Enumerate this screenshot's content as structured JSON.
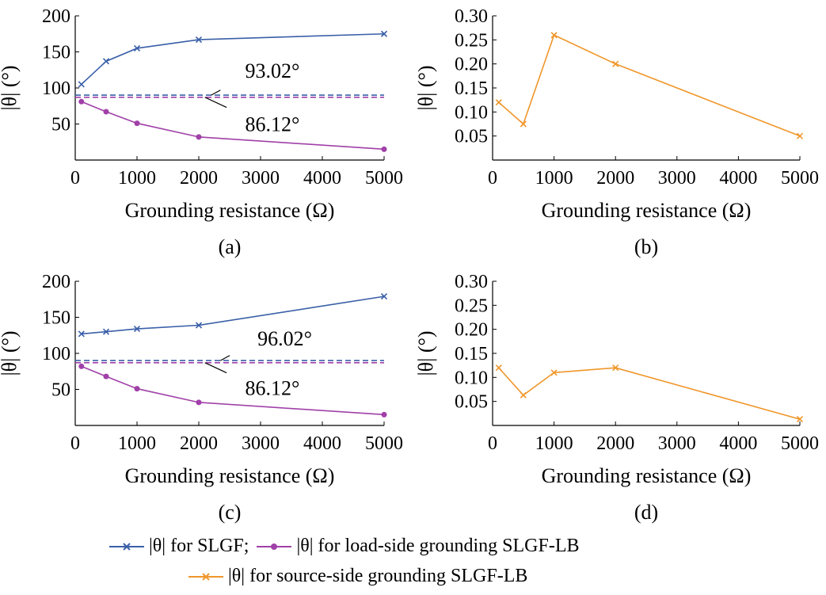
{
  "legend": {
    "items": [
      {
        "label": "|θ| for SLGF;",
        "color": "#3a5fa8",
        "marker": "x"
      },
      {
        "label": "|θ| for load-side grounding SLGF-LB",
        "color": "#a040a8",
        "marker": "dot"
      },
      {
        "label": "|θ| for source-side grounding SLGF-LB",
        "color": "#f0962a",
        "marker": "x"
      }
    ]
  },
  "chart_data": [
    {
      "panel": "(a)",
      "type": "line",
      "xlabel": "Grounding resistance (Ω)",
      "ylabel": "|θ| (°)",
      "xlim": [
        0,
        5000
      ],
      "ylim": [
        0,
        200
      ],
      "xticks": [
        0,
        1000,
        2000,
        3000,
        4000,
        5000
      ],
      "yticks": [
        50,
        100,
        150,
        200
      ],
      "series": [
        {
          "name": "|θ| for SLGF",
          "color": "#3a5fa8",
          "marker": "x",
          "x": [
            100,
            500,
            1000,
            2000,
            5000
          ],
          "y": [
            105,
            137,
            155,
            167,
            175
          ]
        },
        {
          "name": "|θ| for load-side grounding SLGF-LB",
          "color": "#a040a8",
          "marker": "dot",
          "x": [
            100,
            500,
            1000,
            2000,
            5000
          ],
          "y": [
            81,
            67,
            51,
            32,
            15
          ]
        }
      ],
      "hlines": [
        {
          "y": 90,
          "color": "#3a5fa8",
          "dash": true
        },
        {
          "y": 87,
          "color": "#a040a8",
          "dash": true
        }
      ],
      "annotations": [
        {
          "text": "93.02°",
          "x": 2750,
          "y": 124,
          "pointer": [
            [
              2350,
              97
            ],
            [
              2200,
              90
            ]
          ]
        },
        {
          "text": "86.12°",
          "x": 2750,
          "y": 50,
          "pointer": [
            [
              2100,
              87
            ],
            [
              2450,
              73
            ]
          ]
        }
      ]
    },
    {
      "panel": "(b)",
      "type": "line",
      "xlabel": "Grounding resistance (Ω)",
      "ylabel": "|θ| (°)",
      "xlim": [
        0,
        5000
      ],
      "ylim": [
        0,
        0.3
      ],
      "xticks": [
        0,
        1000,
        2000,
        3000,
        4000,
        5000
      ],
      "yticks": [
        "0.05",
        "0.10",
        "0.15",
        "0.20",
        "0.25",
        "0.30"
      ],
      "series": [
        {
          "name": "|θ| for source-side grounding SLGF-LB",
          "color": "#f0962a",
          "marker": "x",
          "x": [
            100,
            500,
            1000,
            2000,
            5000
          ],
          "y": [
            0.12,
            0.075,
            0.26,
            0.2,
            0.05
          ]
        }
      ]
    },
    {
      "panel": "(c)",
      "type": "line",
      "xlabel": "Grounding resistance (Ω)",
      "ylabel": "|θ| (°)",
      "xlim": [
        0,
        5000
      ],
      "ylim": [
        0,
        200
      ],
      "xticks": [
        0,
        1000,
        2000,
        3000,
        4000,
        5000
      ],
      "yticks": [
        50,
        100,
        150,
        200
      ],
      "series": [
        {
          "name": "|θ| for SLGF",
          "color": "#3a5fa8",
          "marker": "x",
          "x": [
            100,
            500,
            1000,
            2000,
            5000
          ],
          "y": [
            127,
            130,
            134,
            139,
            179
          ]
        },
        {
          "name": "|θ| for load-side grounding SLGF-LB",
          "color": "#a040a8",
          "marker": "dot",
          "x": [
            100,
            500,
            1000,
            2000,
            5000
          ],
          "y": [
            82,
            68,
            51,
            32,
            15
          ]
        }
      ],
      "hlines": [
        {
          "y": 90,
          "color": "#3a5fa8",
          "dash": true
        },
        {
          "y": 87,
          "color": "#a040a8",
          "dash": true
        }
      ],
      "annotations": [
        {
          "text": "96.02°",
          "x": 2950,
          "y": 121,
          "pointer": [
            [
              2500,
              97
            ],
            [
              2350,
              90
            ]
          ]
        },
        {
          "text": "86.12°",
          "x": 2750,
          "y": 52,
          "pointer": [
            [
              2100,
              87
            ],
            [
              2450,
              73
            ]
          ]
        }
      ]
    },
    {
      "panel": "(d)",
      "type": "line",
      "xlabel": "Grounding resistance (Ω)",
      "ylabel": "|θ| (°)",
      "xlim": [
        0,
        5000
      ],
      "ylim": [
        0,
        0.3
      ],
      "xticks": [
        0,
        1000,
        2000,
        3000,
        4000,
        5000
      ],
      "yticks": [
        "0.05",
        "0.10",
        "0.15",
        "0.20",
        "0.25",
        "0.30"
      ],
      "series": [
        {
          "name": "|θ| for source-side grounding SLGF-LB",
          "color": "#f0962a",
          "marker": "x",
          "x": [
            100,
            500,
            1000,
            2000,
            5000
          ],
          "y": [
            0.12,
            0.063,
            0.11,
            0.12,
            0.013
          ]
        }
      ]
    }
  ]
}
